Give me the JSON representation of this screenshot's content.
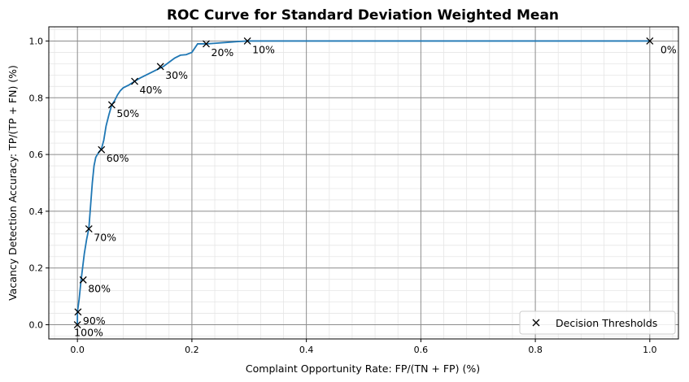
{
  "chart_data": {
    "type": "line",
    "title": "ROC Curve for Standard Deviation Weighted Mean",
    "xlabel": "Complaint Opportunity Rate: FP/(TN + FP) (%)",
    "ylabel": "Vacancy Detection Accuracy: TP/(TP + FN) (%)",
    "xlim": [
      -0.05,
      1.05
    ],
    "ylim": [
      -0.05,
      1.05
    ],
    "x_ticks": [
      0.0,
      0.2,
      0.4,
      0.6,
      0.8,
      1.0
    ],
    "y_ticks": [
      0.0,
      0.2,
      0.4,
      0.6,
      0.8,
      1.0
    ],
    "grid": "major and minor",
    "legend_position": "lower-right",
    "legend": [
      "Decision Thresholds"
    ],
    "colors": {
      "curve": "#1f77b4",
      "markers": "#000000",
      "major_grid": "#8c8c8c",
      "minor_grid": "#e6e6e6"
    },
    "curve": {
      "x": [
        0.0,
        0.0,
        0.003,
        0.006,
        0.009,
        0.012,
        0.016,
        0.02,
        0.023,
        0.026,
        0.029,
        0.032,
        0.035,
        0.038,
        0.042,
        0.046,
        0.05,
        0.055,
        0.06,
        0.065,
        0.07,
        0.075,
        0.08,
        0.09,
        0.1,
        0.11,
        0.12,
        0.13,
        0.14,
        0.15,
        0.16,
        0.17,
        0.18,
        0.19,
        0.2,
        0.21,
        0.225,
        0.24,
        0.26,
        0.28,
        0.297,
        0.33,
        0.4,
        0.5,
        0.6,
        0.7,
        0.8,
        0.9,
        1.0
      ],
      "y": [
        0.0,
        0.045,
        0.09,
        0.15,
        0.2,
        0.25,
        0.3,
        0.34,
        0.42,
        0.5,
        0.56,
        0.59,
        0.6,
        0.61,
        0.62,
        0.65,
        0.7,
        0.74,
        0.775,
        0.79,
        0.81,
        0.825,
        0.835,
        0.845,
        0.858,
        0.87,
        0.88,
        0.89,
        0.9,
        0.91,
        0.925,
        0.94,
        0.95,
        0.952,
        0.96,
        0.99,
        0.99,
        0.992,
        0.995,
        0.998,
        1.0,
        1.0,
        1.0,
        1.0,
        1.0,
        1.0,
        1.0,
        1.0,
        1.0
      ]
    },
    "thresholds": [
      {
        "label": "100%",
        "x": 0.0,
        "y": 0.0
      },
      {
        "label": "90%",
        "x": 0.001,
        "y": 0.045
      },
      {
        "label": "80%",
        "x": 0.01,
        "y": 0.158
      },
      {
        "label": "70%",
        "x": 0.02,
        "y": 0.338
      },
      {
        "label": "60%",
        "x": 0.042,
        "y": 0.617
      },
      {
        "label": "50%",
        "x": 0.06,
        "y": 0.775
      },
      {
        "label": "40%",
        "x": 0.1,
        "y": 0.858
      },
      {
        "label": "30%",
        "x": 0.145,
        "y": 0.91
      },
      {
        "label": "20%",
        "x": 0.225,
        "y": 0.99
      },
      {
        "label": "10%",
        "x": 0.297,
        "y": 1.0
      },
      {
        "label": "0%",
        "x": 1.0,
        "y": 1.0
      }
    ]
  }
}
